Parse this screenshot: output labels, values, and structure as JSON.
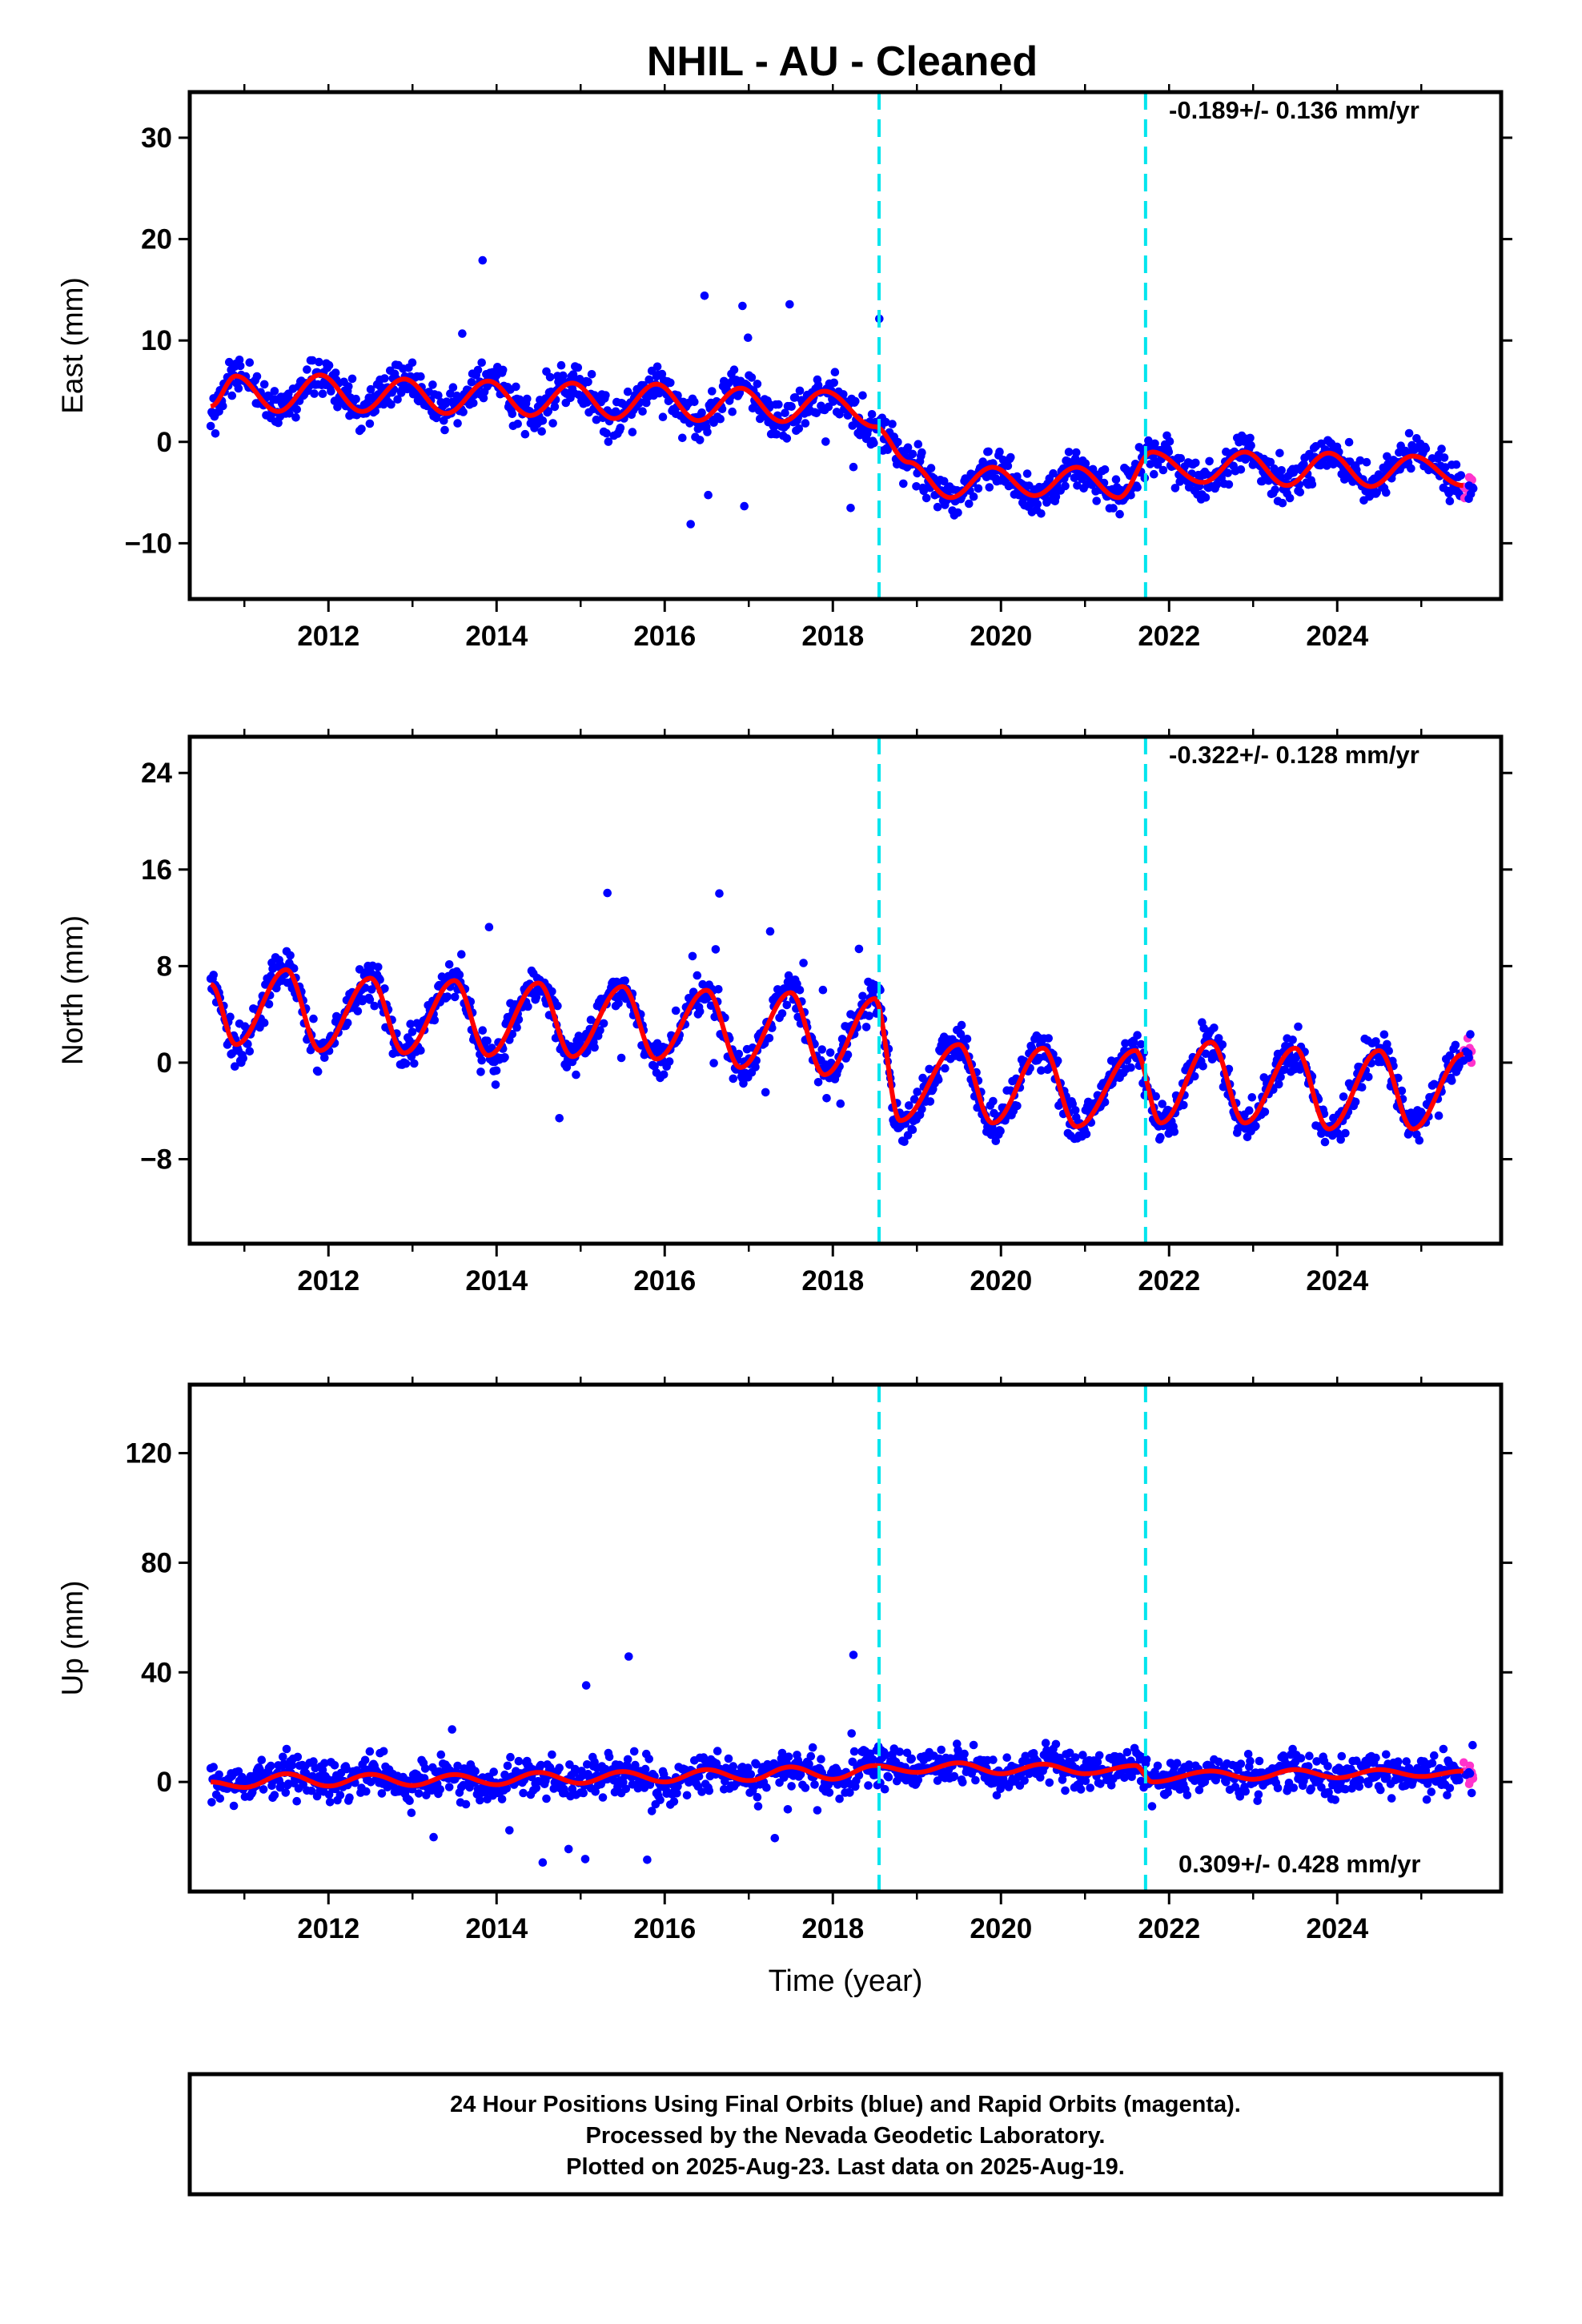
{
  "title": "NHIL  - AU - Cleaned",
  "colors": {
    "final_orbits": "#0000ff",
    "rapid_orbits": "#ff33cc",
    "model": "#ff0000",
    "offsets": "#00e5ee"
  },
  "chart_data": [
    {
      "type": "scatter",
      "ylabel": "East (mm)",
      "xlabel": "",
      "xlim": [
        2010.35,
        2025.95
      ],
      "ylim": [
        -15.5,
        34.5
      ],
      "xticks": [
        "2012",
        "2014",
        "2016",
        "2018",
        "2020",
        "2022",
        "2024"
      ],
      "yticks": [
        "−10",
        "0",
        "10",
        "20",
        "30"
      ],
      "rate_label": "-0.189+/- 0.136 mm/yr",
      "offsets_year": [
        2018.55,
        2021.72
      ],
      "series": [
        {
          "values": [
            [
              2010.6,
              3.5
            ],
            [
              2010.9,
              6.5
            ],
            [
              2011.4,
              3.0
            ],
            [
              2011.9,
              6.6
            ],
            [
              2012.4,
              3.0
            ],
            [
              2012.9,
              6.2
            ],
            [
              2013.4,
              2.8
            ],
            [
              2013.9,
              6.0
            ],
            [
              2014.4,
              2.6
            ],
            [
              2014.9,
              5.8
            ],
            [
              2015.4,
              2.3
            ],
            [
              2015.9,
              5.7
            ],
            [
              2016.4,
              2.1
            ],
            [
              2016.9,
              5.3
            ],
            [
              2017.4,
              2.0
            ],
            [
              2017.9,
              5.0
            ],
            [
              2018.5,
              1.5
            ],
            [
              2018.9,
              -2.0
            ],
            [
              2019.4,
              -5.5
            ],
            [
              2019.9,
              -2.5
            ],
            [
              2020.4,
              -5.3
            ],
            [
              2020.9,
              -2.5
            ],
            [
              2021.4,
              -5.5
            ],
            [
              2021.8,
              -1.0
            ],
            [
              2022.4,
              -4.0
            ],
            [
              2022.9,
              -1.0
            ],
            [
              2023.4,
              -4.3
            ],
            [
              2023.9,
              -1.1
            ],
            [
              2024.4,
              -4.4
            ],
            [
              2024.9,
              -1.4
            ],
            [
              2025.5,
              -4.3
            ]
          ]
        }
      ]
    },
    {
      "type": "scatter",
      "ylabel": "North (mm)",
      "xlabel": "",
      "xlim": [
        2010.35,
        2025.95
      ],
      "ylim": [
        -15,
        27
      ],
      "xticks": [
        "2012",
        "2014",
        "2016",
        "2018",
        "2020",
        "2022",
        "2024"
      ],
      "yticks": [
        "−8",
        "0",
        "8",
        "16",
        "24"
      ],
      "rate_label": "-0.322+/- 0.128 mm/yr",
      "offsets_year": [
        2018.55,
        2021.72
      ],
      "series": [
        {
          "values": [
            [
              2010.6,
              6.5
            ],
            [
              2010.9,
              1.5
            ],
            [
              2011.5,
              7.7
            ],
            [
              2011.9,
              1.0
            ],
            [
              2012.5,
              7.0
            ],
            [
              2012.9,
              0.8
            ],
            [
              2013.5,
              6.8
            ],
            [
              2013.9,
              0.6
            ],
            [
              2014.5,
              6.6
            ],
            [
              2014.9,
              0.5
            ],
            [
              2015.5,
              6.3
            ],
            [
              2015.9,
              0.3
            ],
            [
              2016.5,
              6.0
            ],
            [
              2016.9,
              -0.4
            ],
            [
              2017.5,
              5.8
            ],
            [
              2017.9,
              -1.0
            ],
            [
              2018.5,
              5.3
            ],
            [
              2018.8,
              -4.8
            ],
            [
              2019.5,
              1.5
            ],
            [
              2019.9,
              -5.0
            ],
            [
              2020.5,
              1.2
            ],
            [
              2020.9,
              -5.3
            ],
            [
              2021.6,
              1.0
            ],
            [
              2021.9,
              -5.0
            ],
            [
              2022.5,
              1.7
            ],
            [
              2022.9,
              -5.0
            ],
            [
              2023.5,
              1.2
            ],
            [
              2023.9,
              -5.5
            ],
            [
              2024.5,
              1.0
            ],
            [
              2024.9,
              -5.5
            ],
            [
              2025.5,
              0.7
            ]
          ]
        }
      ]
    },
    {
      "type": "scatter",
      "ylabel": "Up (mm)",
      "xlabel": "Time (year)",
      "xlim": [
        2010.35,
        2025.95
      ],
      "ylim": [
        -40,
        145
      ],
      "xticks": [
        "2012",
        "2014",
        "2016",
        "2018",
        "2020",
        "2022",
        "2024"
      ],
      "yticks": [
        "0",
        "40",
        "80",
        "120"
      ],
      "rate_label": "0.309+/- 0.428 mm/yr",
      "offsets_year": [
        2018.55,
        2021.72
      ],
      "series": [
        {
          "values": [
            [
              2010.6,
              0
            ],
            [
              2011.0,
              -2.0
            ],
            [
              2011.5,
              3.0
            ],
            [
              2012.0,
              -1.5
            ],
            [
              2012.5,
              2.8
            ],
            [
              2013.0,
              -1.3
            ],
            [
              2013.5,
              2.7
            ],
            [
              2014.0,
              -1.0
            ],
            [
              2014.5,
              3.5
            ],
            [
              2015.0,
              -0.5
            ],
            [
              2015.5,
              3.8
            ],
            [
              2016.0,
              0.0
            ],
            [
              2016.5,
              4.5
            ],
            [
              2017.0,
              0.5
            ],
            [
              2017.5,
              5.5
            ],
            [
              2018.0,
              1.0
            ],
            [
              2018.5,
              6.0
            ],
            [
              2019.0,
              3.5
            ],
            [
              2019.5,
              7.0
            ],
            [
              2020.0,
              3.0
            ],
            [
              2020.5,
              6.5
            ],
            [
              2021.0,
              3.0
            ],
            [
              2021.6,
              6.0
            ],
            [
              2021.8,
              0.0
            ],
            [
              2022.5,
              4.0
            ],
            [
              2023.0,
              1.0
            ],
            [
              2023.5,
              4.5
            ],
            [
              2024.0,
              1.5
            ],
            [
              2024.5,
              4.5
            ],
            [
              2025.0,
              2.0
            ],
            [
              2025.5,
              4.0
            ]
          ]
        }
      ]
    }
  ],
  "footer": {
    "line1": "24 Hour Positions Using Final Orbits (blue) and Rapid Orbits (magenta).",
    "line2": "Processed by the Nevada Geodetic Laboratory.",
    "line3": "Plotted on 2025-Aug-23. Last data on 2025-Aug-19."
  }
}
